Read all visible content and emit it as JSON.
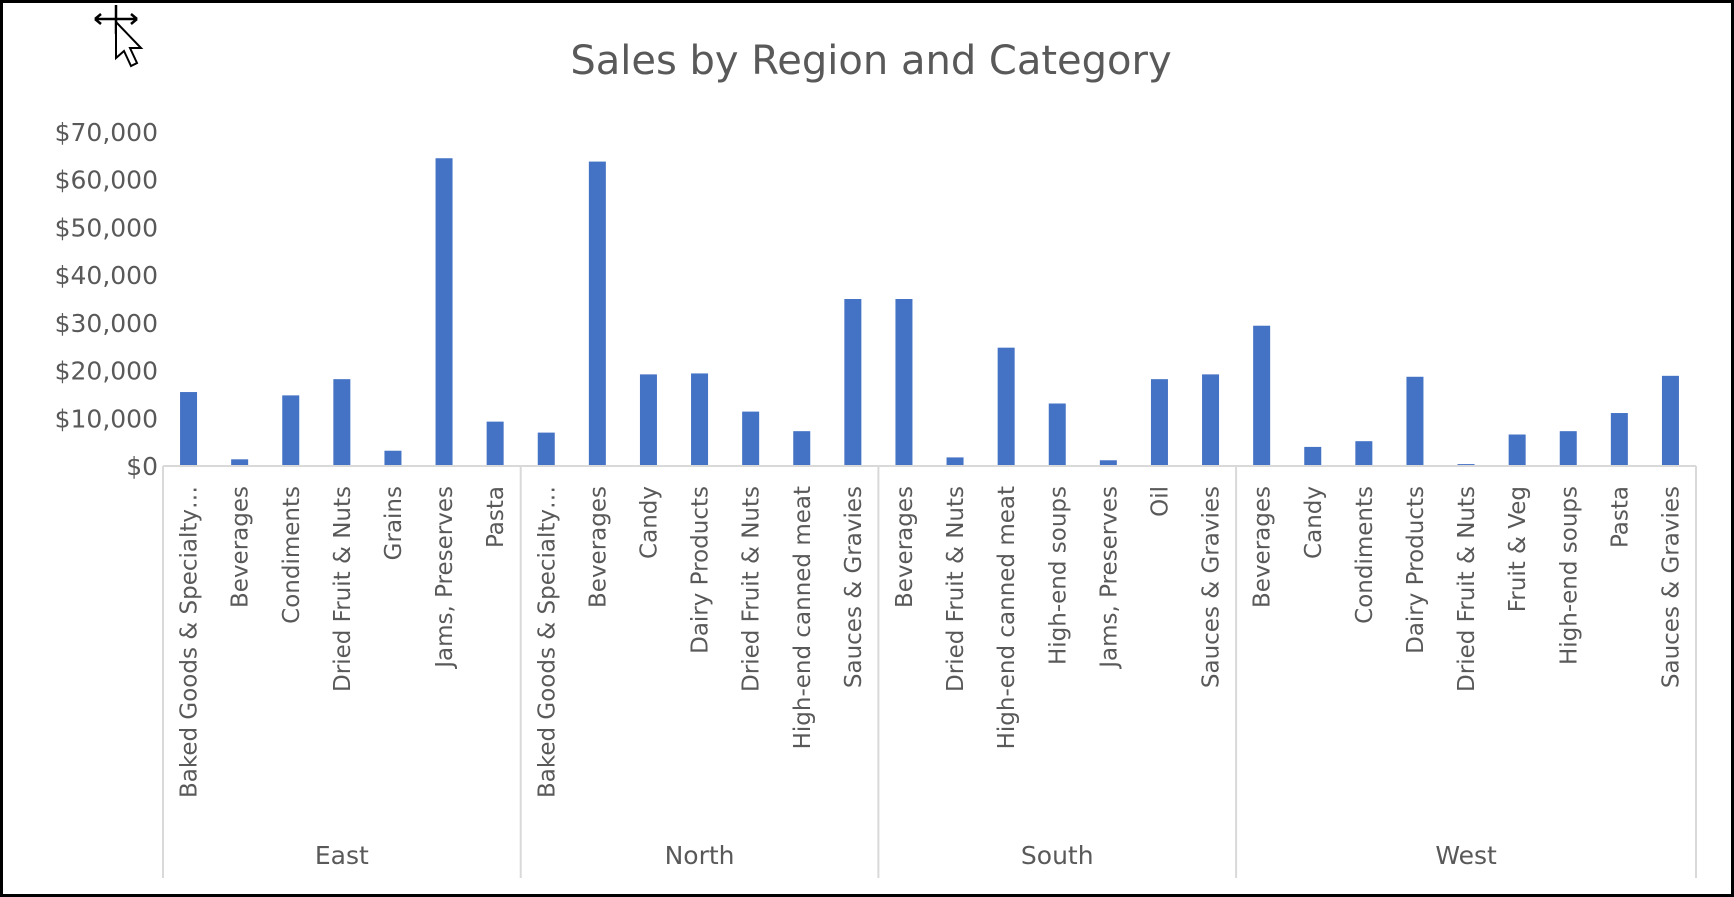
{
  "chart_data": {
    "type": "bar",
    "title": "Sales by Region and Category",
    "xlabel": "",
    "ylabel": "",
    "ylim": [
      0,
      70000
    ],
    "yticks": [
      "$0",
      "$10,000",
      "$20,000",
      "$30,000",
      "$40,000",
      "$50,000",
      "$60,000",
      "$70,000"
    ],
    "ytick_values": [
      0,
      10000,
      20000,
      30000,
      40000,
      50000,
      60000,
      70000
    ],
    "grid": false,
    "legend": "none",
    "bar_color": "#4472c4",
    "groups": [
      {
        "name": "East",
        "categories": [
          "Baked Goods & Specialty…",
          "Beverages",
          "Condiments",
          "Dried Fruit & Nuts",
          "Grains",
          "Jams, Preserves",
          "Pasta"
        ],
        "values": [
          15500,
          1400,
          14800,
          18200,
          3200,
          64500,
          9300
        ]
      },
      {
        "name": "North",
        "categories": [
          "Baked Goods & Specialty…",
          "Beverages",
          "Candy",
          "Dairy Products",
          "Dried Fruit & Nuts",
          "High-end canned meat",
          "Sauces & Gravies"
        ],
        "values": [
          7000,
          63800,
          19200,
          19400,
          11400,
          7300,
          35000
        ]
      },
      {
        "name": "South",
        "categories": [
          "Beverages",
          "Dried Fruit & Nuts",
          "High-end canned meat",
          "High-end soups",
          "Jams, Preserves",
          "Oil",
          "Sauces & Gravies"
        ],
        "values": [
          35000,
          1800,
          24800,
          13100,
          1200,
          18200,
          19200
        ]
      },
      {
        "name": "West",
        "categories": [
          "Beverages",
          "Candy",
          "Condiments",
          "Dairy Products",
          "Dried Fruit & Nuts",
          "Fruit & Veg",
          "High-end soups",
          "Pasta",
          "Sauces & Gravies"
        ],
        "values": [
          29400,
          4000,
          5200,
          18700,
          400,
          6600,
          7300,
          11100,
          18900
        ]
      }
    ]
  },
  "cursor_icon": "move-cursor-icon"
}
